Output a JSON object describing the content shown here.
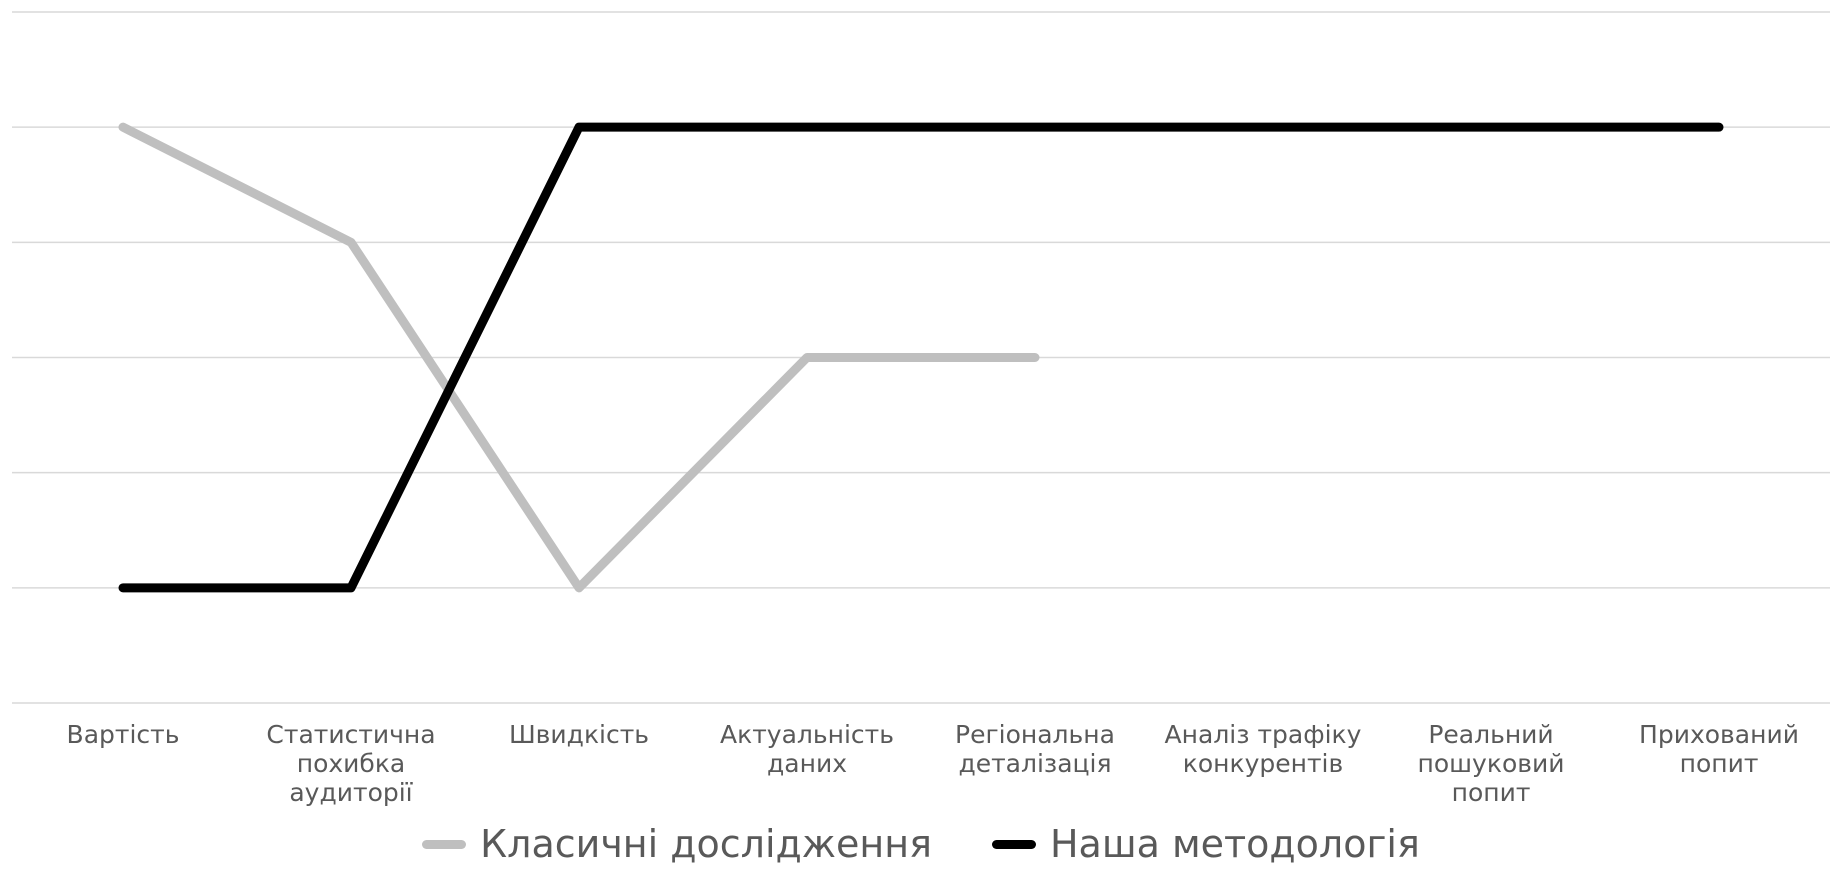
{
  "chart_data": {
    "type": "line",
    "categories": [
      "Вартість",
      "Статистична похибка аудиторії",
      "Швидкість",
      "Актуальність даних",
      "Регіональна деталізація",
      "Аналіз трафіку конкурентів",
      "Реальний пошуковий попит",
      "Прихований попит"
    ],
    "series": [
      {
        "name": "Класичні дослідження",
        "color": "#bfbfbf",
        "values": [
          5,
          4,
          1,
          3,
          3,
          null,
          null,
          null
        ]
      },
      {
        "name": "Наша методологія",
        "color": "#000000",
        "values": [
          1,
          1,
          5,
          5,
          5,
          5,
          5,
          5
        ]
      }
    ],
    "ylim": [
      0,
      6
    ],
    "yticks": [
      0,
      1,
      2,
      3,
      4,
      5,
      6
    ],
    "grid": true
  }
}
